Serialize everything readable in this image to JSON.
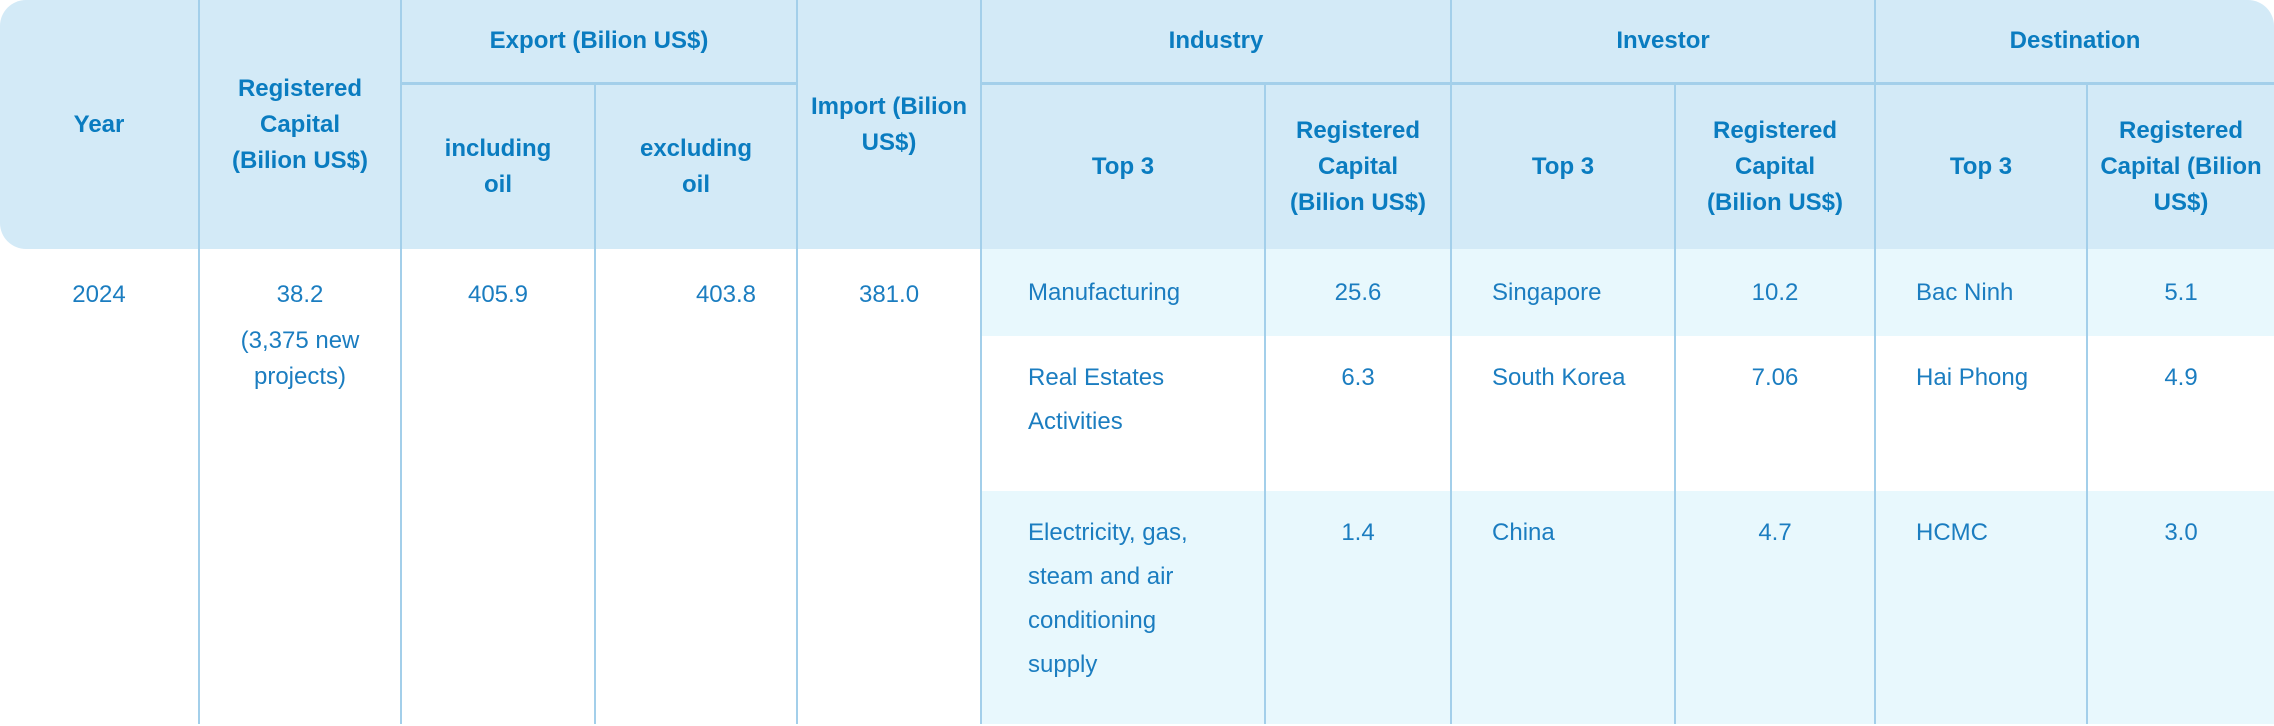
{
  "headers": {
    "year": "Year",
    "registered_capital": "Registered Capital (Bilion US$)",
    "export": "Export (Bilion US$)",
    "export_including": "including oil",
    "export_excluding": "excluding oil",
    "import": "Import (Bilion US$)",
    "industry": "Industry",
    "investor": "Investor",
    "destination": "Destination",
    "top3": "Top 3",
    "sub_capital": "Registered Capital (Bilion US$)"
  },
  "row": {
    "year": "2024",
    "registered_capital": "38.2",
    "new_projects": "(3,375 new projects)",
    "export_including": "405.9",
    "export_excluding": "403.8",
    "import": "381.0",
    "top": [
      {
        "industry": "Manufacturing",
        "industry_capital": "25.6",
        "investor": "Singapore",
        "investor_capital": "10.2",
        "destination": "Bac Ninh",
        "destination_capital": "5.1"
      },
      {
        "industry": "Real Estates Activities",
        "industry_capital": "6.3",
        "investor": "South Korea",
        "investor_capital": "7.06",
        "destination": "Hai Phong",
        "destination_capital": "4.9"
      },
      {
        "industry": "Electricity, gas, steam and air conditioning supply",
        "industry_capital": "1.4",
        "investor": "China",
        "investor_capital": "4.7",
        "destination": "HCMC",
        "destination_capital": "3.0"
      }
    ]
  }
}
